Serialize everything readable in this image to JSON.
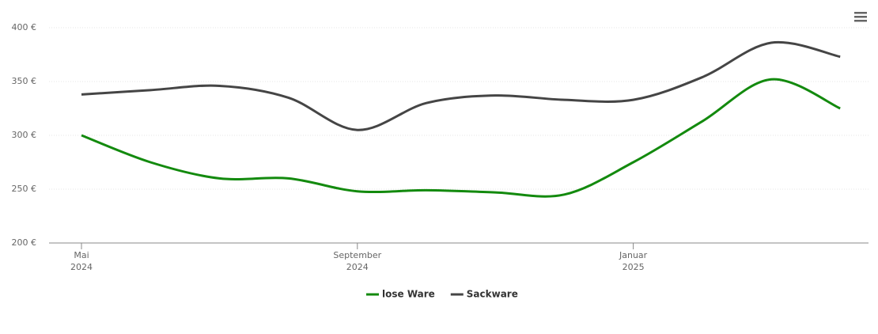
{
  "chart_data": {
    "type": "line",
    "x": [
      "2024-05",
      "2024-06",
      "2024-07",
      "2024-08",
      "2024-09",
      "2024-10",
      "2024-11",
      "2024-12",
      "2025-01",
      "2025-02",
      "2025-03",
      "2025-04"
    ],
    "series": [
      {
        "name": "lose Ware",
        "color": "#138a0e",
        "values": [
          300,
          275,
          260,
          260,
          248,
          249,
          247,
          245,
          275,
          313,
          352,
          325
        ]
      },
      {
        "name": "Sackware",
        "color": "#454545",
        "values": [
          338,
          342,
          346,
          335,
          305,
          330,
          337,
          333,
          333,
          354,
          386,
          373
        ]
      }
    ],
    "ylim": [
      200,
      400
    ],
    "yticks": [
      {
        "value": 200,
        "label": "200 €"
      },
      {
        "value": 250,
        "label": "250 €"
      },
      {
        "value": 300,
        "label": "300 €"
      },
      {
        "value": 350,
        "label": "350 €"
      },
      {
        "value": 400,
        "label": "400 €"
      }
    ],
    "xticks": [
      {
        "value": "2024-05",
        "label": [
          "Mai",
          "2024"
        ]
      },
      {
        "value": "2024-09",
        "label": [
          "September",
          "2024"
        ]
      },
      {
        "value": "2025-01",
        "label": [
          "Januar",
          "2025"
        ]
      }
    ],
    "grid": true,
    "legend": "bottom"
  }
}
